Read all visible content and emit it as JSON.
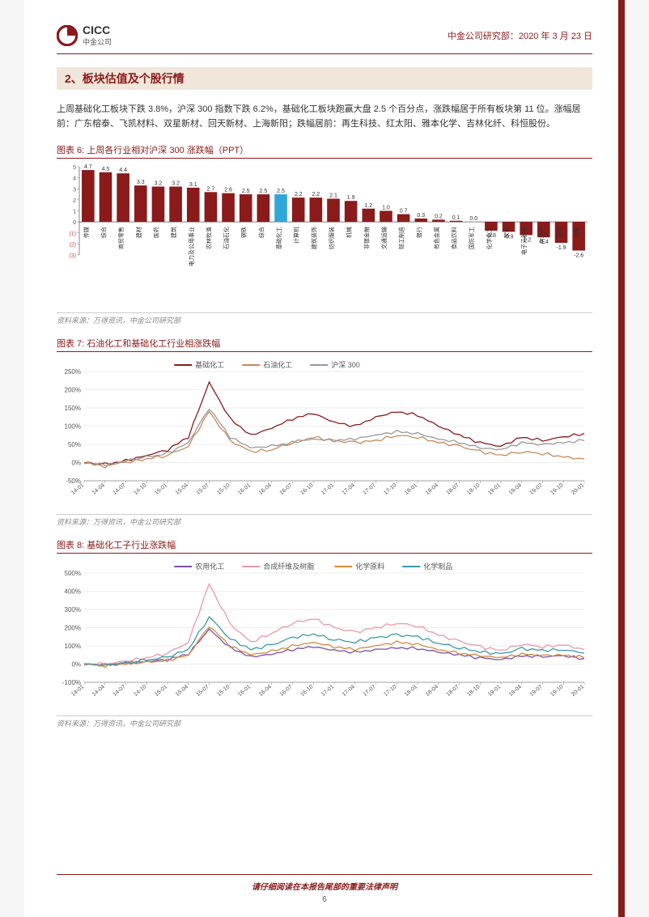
{
  "header": {
    "company": "CICC",
    "company_cn": "中金公司",
    "dept": "中金公司研究部：",
    "date": "2020 年 3 月 23 日"
  },
  "section_title": "2、板块估值及个股行情",
  "body_text": "上周基础化工板块下跌 3.8%，沪深 300 指数下跌 6.2%，基础化工板块跑赢大盘 2.5 个百分点，涨跌幅居于所有板块第 11 位。涨幅居前：广东榕泰、飞凯材料、双星新材、回天新材、上海新阳；跌幅居前：再生科技、红太阳、雅本化学、吉林化纤、科恒股份。",
  "chart6": {
    "title": "图表 6: 上周各行业相对沪深 300 涨跌幅（PPT）",
    "type": "bar",
    "categories": [
      "传媒",
      "综合",
      "商贸零售",
      "建材",
      "医药",
      "建筑",
      "电力及公用事业",
      "农林牧渔",
      "石油石化",
      "钢铁",
      "综合",
      "基础化工",
      "计算机",
      "建筑装饰",
      "纺织服装",
      "机械",
      "非银金融",
      "交通运输",
      "轻工制造",
      "银行",
      "有色金属",
      "食品饮料",
      "国防军工",
      "化学化工",
      "家电",
      "电子元器件",
      "房地产",
      "通信",
      "汽车"
    ],
    "values": [
      4.7,
      4.5,
      4.4,
      3.3,
      3.2,
      3.2,
      3.1,
      2.7,
      2.6,
      2.5,
      2.5,
      2.5,
      2.2,
      2.2,
      2.1,
      1.9,
      1.2,
      1.0,
      0.7,
      0.3,
      0.2,
      0.1,
      0.0,
      -0.8,
      -0.9,
      -1.2,
      -1.4,
      -1.9,
      -2.6
    ],
    "highlight_index": 11,
    "bar_color": "#8b1a1a",
    "highlight_color": "#2ea8d8",
    "y_max": 5,
    "y_min": -3,
    "y_step": 1,
    "label_fontsize": 7,
    "axis_fontsize": 7
  },
  "chart7": {
    "title": "图表 7: 石油化工和基础化工行业相涨跌幅",
    "type": "line",
    "legend": [
      "基础化工",
      "石油化工",
      "沪深 300"
    ],
    "colors": [
      "#8b1a1a",
      "#c98a5a",
      "#999999"
    ],
    "x_labels": [
      "14-01",
      "14-04",
      "14-07",
      "14-10",
      "15-01",
      "15-04",
      "15-07",
      "15-10",
      "16-01",
      "16-04",
      "16-07",
      "16-10",
      "17-01",
      "17-04",
      "17-07",
      "17-10",
      "18-01",
      "18-04",
      "18-07",
      "18-10",
      "19-01",
      "19-04",
      "19-07",
      "19-10",
      "20-01"
    ],
    "y_min": -50,
    "y_max": 250,
    "y_step": 50,
    "series": {
      "基础化工": [
        0,
        -5,
        5,
        20,
        35,
        70,
        220,
        120,
        75,
        95,
        120,
        135,
        110,
        100,
        125,
        140,
        130,
        100,
        75,
        55,
        45,
        70,
        60,
        70,
        80
      ],
      "石油化工": [
        0,
        -8,
        0,
        10,
        20,
        45,
        140,
        60,
        30,
        35,
        55,
        70,
        60,
        55,
        60,
        75,
        70,
        55,
        45,
        30,
        20,
        30,
        25,
        15,
        10
      ],
      "沪深 300": [
        0,
        -10,
        5,
        15,
        25,
        55,
        150,
        70,
        40,
        45,
        55,
        65,
        60,
        65,
        75,
        85,
        80,
        65,
        55,
        40,
        35,
        55,
        50,
        55,
        60
      ]
    }
  },
  "chart8": {
    "title": "图表 8: 基础化工子行业涨跌幅",
    "type": "line",
    "legend": [
      "农用化工",
      "合成纤维及树脂",
      "化学原料",
      "化学制品"
    ],
    "colors": [
      "#7b4fa8",
      "#e89aa8",
      "#d68a3a",
      "#3a9aa8"
    ],
    "x_labels": [
      "14-01",
      "14-04",
      "14-07",
      "14-10",
      "15-01",
      "15-04",
      "15-07",
      "15-10",
      "16-01",
      "16-04",
      "16-07",
      "16-10",
      "17-01",
      "17-04",
      "17-07",
      "17-10",
      "18-01",
      "18-04",
      "18-07",
      "18-10",
      "19-01",
      "19-04",
      "19-07",
      "19-10",
      "20-01"
    ],
    "y_min": -100,
    "y_max": 500,
    "y_step": 100,
    "series": {
      "农用化工": [
        0,
        -5,
        5,
        15,
        25,
        55,
        190,
        90,
        40,
        55,
        80,
        95,
        75,
        65,
        80,
        90,
        85,
        65,
        50,
        35,
        25,
        45,
        40,
        45,
        30
      ],
      "合成纤维及树脂": [
        0,
        0,
        15,
        35,
        60,
        120,
        440,
        220,
        120,
        170,
        225,
        250,
        200,
        175,
        200,
        225,
        210,
        160,
        125,
        95,
        75,
        110,
        95,
        105,
        80
      ],
      "化学原料": [
        0,
        -8,
        0,
        10,
        20,
        50,
        210,
        100,
        50,
        70,
        100,
        120,
        95,
        80,
        100,
        120,
        110,
        80,
        60,
        45,
        35,
        55,
        48,
        50,
        35
      ],
      "化学制品": [
        0,
        -5,
        8,
        22,
        38,
        80,
        260,
        140,
        80,
        105,
        145,
        165,
        135,
        120,
        145,
        160,
        150,
        115,
        90,
        68,
        55,
        85,
        75,
        80,
        60
      ]
    }
  },
  "source": "资料来源：万得资讯，中金公司研究部",
  "footer": {
    "disclaimer": "请仔细阅读在本报告尾部的重要法律声明",
    "page": "6"
  }
}
